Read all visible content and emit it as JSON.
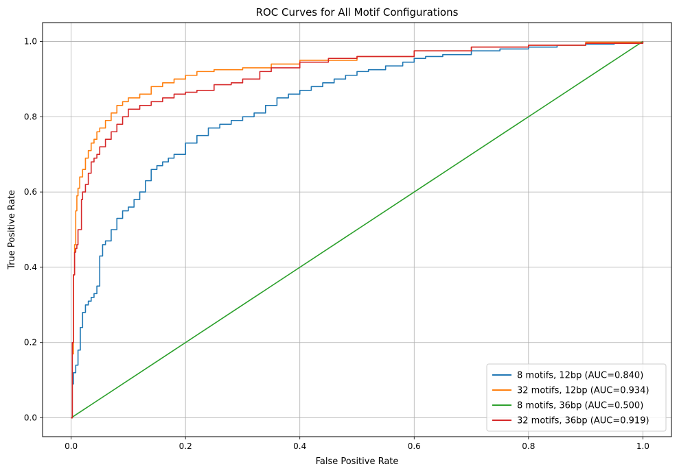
{
  "chart_data": {
    "type": "line",
    "title": "ROC Curves for All Motif Configurations",
    "xlabel": "False Positive Rate",
    "ylabel": "True Positive Rate",
    "xlim": [
      -0.05,
      1.05
    ],
    "ylim": [
      -0.05,
      1.05
    ],
    "xticks": [
      0.0,
      0.2,
      0.4,
      0.6,
      0.8,
      1.0
    ],
    "yticks": [
      0.0,
      0.2,
      0.4,
      0.6,
      0.8,
      1.0
    ],
    "xtick_labels": [
      "0.0",
      "0.2",
      "0.4",
      "0.6",
      "0.8",
      "1.0"
    ],
    "ytick_labels": [
      "0.0",
      "0.2",
      "0.4",
      "0.6",
      "0.8",
      "1.0"
    ],
    "grid": true,
    "legend_position": "lower-right",
    "series": [
      {
        "name": "8 motifs, 12bp (AUC=0.840)",
        "color": "#1f77b4",
        "x": [
          0,
          0.002,
          0.004,
          0.008,
          0.012,
          0.016,
          0.02,
          0.025,
          0.03,
          0.035,
          0.04,
          0.045,
          0.05,
          0.055,
          0.06,
          0.07,
          0.08,
          0.09,
          0.1,
          0.11,
          0.12,
          0.13,
          0.14,
          0.15,
          0.16,
          0.17,
          0.18,
          0.2,
          0.22,
          0.24,
          0.26,
          0.28,
          0.3,
          0.32,
          0.34,
          0.36,
          0.38,
          0.4,
          0.42,
          0.44,
          0.46,
          0.48,
          0.5,
          0.52,
          0.55,
          0.58,
          0.6,
          0.62,
          0.65,
          0.7,
          0.75,
          0.8,
          0.85,
          0.9,
          0.95,
          1.0
        ],
        "y": [
          0,
          0.09,
          0.12,
          0.14,
          0.18,
          0.24,
          0.28,
          0.3,
          0.31,
          0.32,
          0.33,
          0.35,
          0.43,
          0.46,
          0.47,
          0.5,
          0.53,
          0.55,
          0.56,
          0.58,
          0.6,
          0.63,
          0.66,
          0.67,
          0.68,
          0.69,
          0.7,
          0.73,
          0.75,
          0.77,
          0.78,
          0.79,
          0.8,
          0.81,
          0.83,
          0.85,
          0.86,
          0.87,
          0.88,
          0.89,
          0.9,
          0.91,
          0.92,
          0.925,
          0.935,
          0.945,
          0.955,
          0.96,
          0.965,
          0.975,
          0.98,
          0.985,
          0.99,
          0.993,
          0.996,
          1.0
        ]
      },
      {
        "name": "32 motifs, 12bp (AUC=0.934)",
        "color": "#ff7f0e",
        "x": [
          0,
          0.002,
          0.004,
          0.006,
          0.008,
          0.01,
          0.012,
          0.015,
          0.02,
          0.025,
          0.03,
          0.035,
          0.04,
          0.045,
          0.05,
          0.06,
          0.07,
          0.08,
          0.09,
          0.1,
          0.12,
          0.14,
          0.16,
          0.18,
          0.2,
          0.22,
          0.25,
          0.3,
          0.35,
          0.4,
          0.5,
          0.6,
          0.7,
          0.8,
          0.9,
          1.0
        ],
        "y": [
          0,
          0.17,
          0.38,
          0.46,
          0.55,
          0.59,
          0.61,
          0.64,
          0.66,
          0.69,
          0.71,
          0.73,
          0.74,
          0.76,
          0.77,
          0.79,
          0.81,
          0.83,
          0.84,
          0.85,
          0.86,
          0.88,
          0.89,
          0.9,
          0.91,
          0.92,
          0.925,
          0.93,
          0.94,
          0.95,
          0.96,
          0.975,
          0.985,
          0.99,
          0.998,
          1.0
        ]
      },
      {
        "name": "8 motifs, 36bp (AUC=0.500)",
        "color": "#2ca02c",
        "x": [
          0,
          1.0
        ],
        "y": [
          0,
          1.0
        ]
      },
      {
        "name": "32 motifs, 36bp (AUC=0.919)",
        "color": "#d62728",
        "x": [
          0,
          0.002,
          0.004,
          0.006,
          0.008,
          0.01,
          0.012,
          0.015,
          0.018,
          0.02,
          0.025,
          0.03,
          0.035,
          0.04,
          0.045,
          0.05,
          0.06,
          0.07,
          0.08,
          0.09,
          0.1,
          0.12,
          0.14,
          0.16,
          0.18,
          0.2,
          0.22,
          0.25,
          0.28,
          0.3,
          0.33,
          0.35,
          0.4,
          0.45,
          0.5,
          0.6,
          0.7,
          0.8,
          0.9,
          1.0
        ],
        "y": [
          0,
          0.2,
          0.38,
          0.44,
          0.45,
          0.46,
          0.5,
          0.5,
          0.58,
          0.6,
          0.62,
          0.65,
          0.68,
          0.69,
          0.7,
          0.72,
          0.74,
          0.76,
          0.78,
          0.8,
          0.82,
          0.83,
          0.84,
          0.85,
          0.86,
          0.865,
          0.87,
          0.885,
          0.89,
          0.9,
          0.92,
          0.93,
          0.945,
          0.955,
          0.96,
          0.975,
          0.985,
          0.99,
          0.995,
          1.0
        ]
      }
    ]
  }
}
